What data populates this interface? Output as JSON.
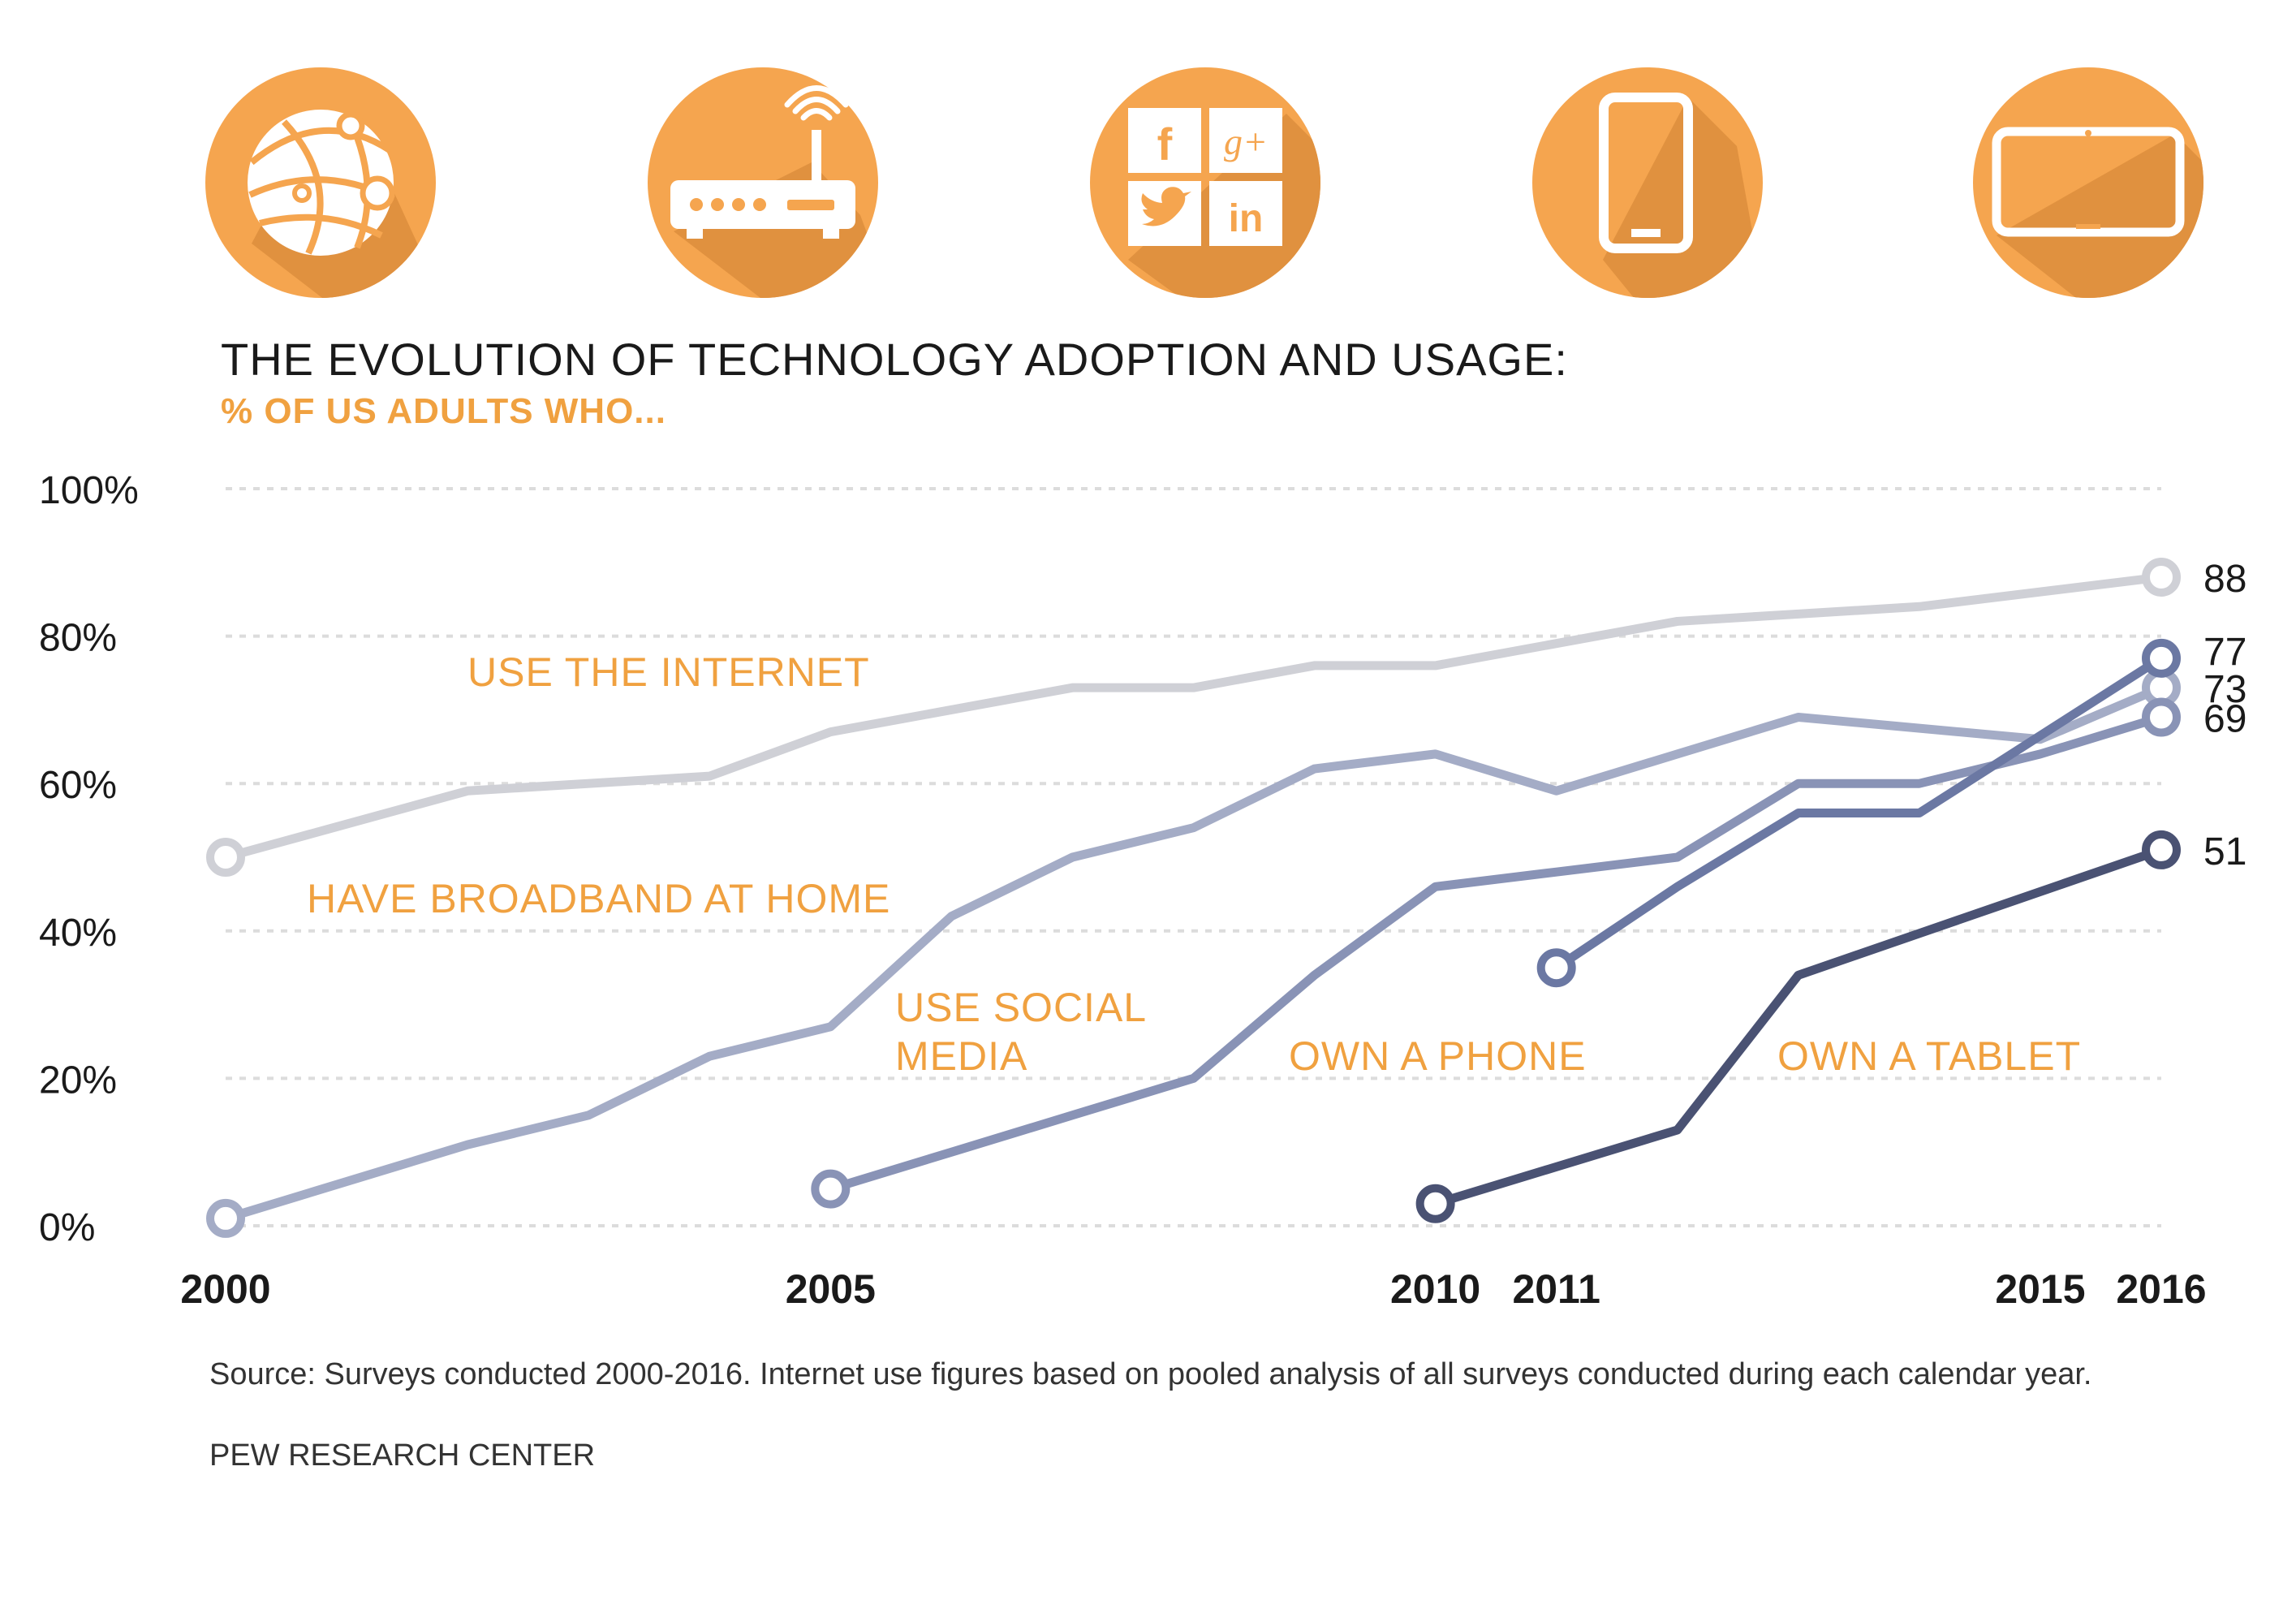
{
  "icons": [
    {
      "name": "globe-network-icon"
    },
    {
      "name": "wifi-router-icon"
    },
    {
      "name": "social-media-icon",
      "tiles": [
        "f",
        "g+",
        "twitter",
        "in"
      ]
    },
    {
      "name": "smartphone-icon"
    },
    {
      "name": "tablet-icon"
    }
  ],
  "colors": {
    "icon_circle": "#f5a54f",
    "icon_shadow": "#e0913f",
    "accent_text": "#f0a140",
    "internet": "#cfd0d6",
    "broadband": "#a4acc6",
    "social": "#8993b6",
    "phone": "#6b78a3",
    "tablet": "#4a5273",
    "grid": "#dcdcdc"
  },
  "title": "THE EVOLUTION OF TECHNOLOGY ADOPTION AND USAGE:",
  "subtitle": "% OF US ADULTS WHO...",
  "source": "Source: Surveys conducted 2000-2016. Internet use figures based on pooled analysis of all surveys conducted during each calendar year.",
  "credit": "PEW RESEARCH CENTER",
  "chart_data": {
    "type": "line",
    "ylim": [
      0,
      100
    ],
    "xlim": [
      2000,
      2016
    ],
    "yticks": [
      0,
      20,
      40,
      60,
      80,
      100
    ],
    "ytick_labels": [
      "0%",
      "20%",
      "40%",
      "60%",
      "80%",
      "100%"
    ],
    "xticks": [
      2000,
      2005,
      2010,
      2011,
      2015,
      2016
    ],
    "xtick_labels": [
      "2000",
      "2005",
      "2010",
      "2011",
      "2015",
      "2016"
    ],
    "grid": "horizontal dashed",
    "series": [
      {
        "name": "USE THE INTERNET",
        "color_key": "internet",
        "x": [
          2000,
          2002,
          2004,
          2005,
          2007,
          2008,
          2009,
          2010,
          2011,
          2012,
          2013,
          2014,
          2016
        ],
        "y": [
          50,
          59,
          61,
          67,
          73,
          73,
          76,
          76,
          79,
          82,
          83,
          84,
          88
        ],
        "end_label": "88"
      },
      {
        "name": "HAVE BROADBAND AT HOME",
        "color_key": "broadband",
        "x": [
          2000,
          2002,
          2003,
          2004,
          2005,
          2006,
          2007,
          2008,
          2009,
          2010,
          2011,
          2012,
          2013,
          2015,
          2016
        ],
        "y": [
          1,
          11,
          15,
          23,
          27,
          42,
          50,
          54,
          62,
          64,
          59,
          64,
          69,
          66,
          73
        ],
        "end_label": "73"
      },
      {
        "name": "USE SOCIAL MEDIA",
        "color_key": "social",
        "x": [
          2005,
          2006,
          2007,
          2008,
          2009,
          2010,
          2011,
          2012,
          2013,
          2014,
          2015,
          2016
        ],
        "y": [
          5,
          10,
          15,
          20,
          34,
          46,
          48,
          50,
          60,
          60,
          64,
          69
        ],
        "end_label": "69"
      },
      {
        "name": "OWN A PHONE",
        "color_key": "phone",
        "x": [
          2011,
          2012,
          2013,
          2014,
          2016
        ],
        "y": [
          35,
          46,
          56,
          56,
          77
        ],
        "end_label": "77"
      },
      {
        "name": "OWN A TABLET",
        "color_key": "tablet",
        "x": [
          2010,
          2011,
          2012,
          2013,
          2016
        ],
        "y": [
          3,
          8,
          13,
          34,
          51
        ],
        "end_label": "51"
      }
    ],
    "series_labels": [
      {
        "text": "USE THE INTERNET",
        "lines": [
          "USE THE INTERNET"
        ]
      },
      {
        "text": "HAVE BROADBAND AT HOME",
        "lines": [
          "HAVE BROADBAND AT HOME"
        ]
      },
      {
        "text": "USE SOCIAL MEDIA",
        "lines": [
          "USE SOCIAL",
          "MEDIA"
        ]
      },
      {
        "text": "OWN A PHONE",
        "lines": [
          "OWN A PHONE"
        ]
      },
      {
        "text": "OWN A TABLET",
        "lines": [
          "OWN A TABLET"
        ]
      }
    ]
  }
}
